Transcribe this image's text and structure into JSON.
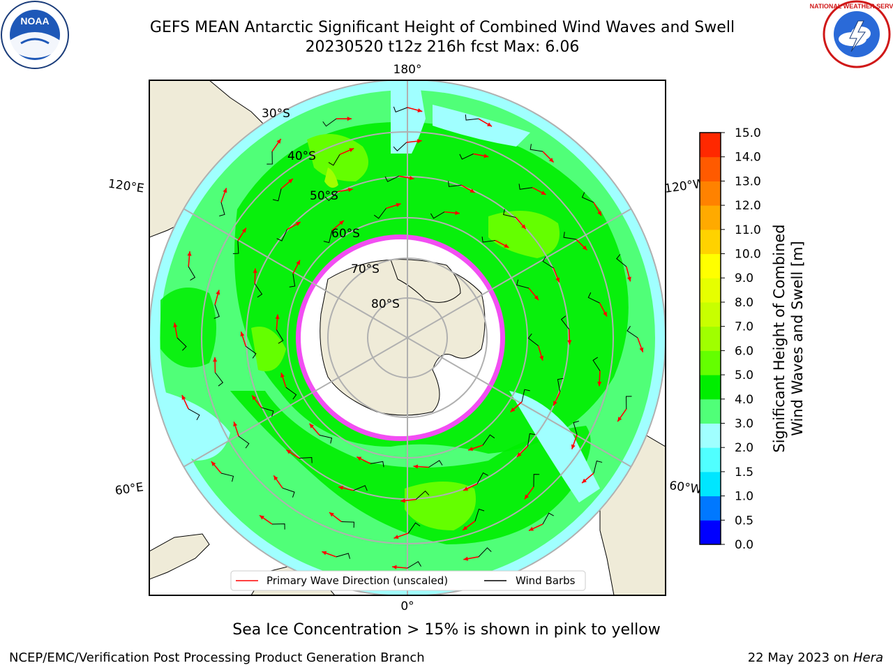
{
  "header": {
    "title_line1": "GEFS MEAN Antarctic Significant Height of Combined Wind Waves and Swell",
    "title_line2": "20230520 t12z 216h fcst   Max: 6.06"
  },
  "logos": {
    "left": {
      "name": "noaa-logo",
      "text": "NOAA"
    },
    "right": {
      "name": "national-weather-service-logo",
      "text": "NATIONAL WEATHER SERVICE"
    }
  },
  "map": {
    "longitude_labels": {
      "top": "180°",
      "bottom": "0°",
      "left_upper": "120°E",
      "left_lower": "60°E",
      "right_upper": "120°W",
      "right_lower": "60°W"
    },
    "latitude_labels": [
      "30°S",
      "40°S",
      "50°S",
      "60°S",
      "70°S",
      "80°S"
    ],
    "colors": {
      "land": "#efebd8",
      "ice_edge": "#ff44ff",
      "grid": "#b0b0b0",
      "wave_arrow": "#ff0000",
      "wind_barb": "#000000"
    }
  },
  "legend": {
    "primary_wave": "Primary Wave Direction (unscaled)",
    "wind_barbs": "Wind Barbs"
  },
  "colorbar": {
    "label_line1": "Significant Height of Combined",
    "label_line2": "Wind Waves and Swell [m]",
    "ticks": [
      "0.0",
      "0.5",
      "1.0",
      "1.5",
      "2.0",
      "3.0",
      "4.0",
      "5.0",
      "6.0",
      "7.0",
      "8.0",
      "9.0",
      "10.0",
      "11.0",
      "12.0",
      "13.0",
      "14.0",
      "15.0"
    ],
    "colors": [
      "#0000ff",
      "#0078ff",
      "#00e6ff",
      "#50ffff",
      "#a0ffff",
      "#50ff78",
      "#00ee00",
      "#64ff00",
      "#a0ff00",
      "#c8ff00",
      "#e6ff00",
      "#ffff00",
      "#ffd200",
      "#ffaa00",
      "#ff8200",
      "#ff5a00",
      "#ff2800"
    ]
  },
  "footer": {
    "caption": "Sea Ice Concentration > 15% is shown in pink to yellow",
    "left": "NCEP/EMC/Verification Post Processing Product Generation Branch",
    "right_prefix": "22 May 2023 on ",
    "right_italic": "Hera"
  }
}
